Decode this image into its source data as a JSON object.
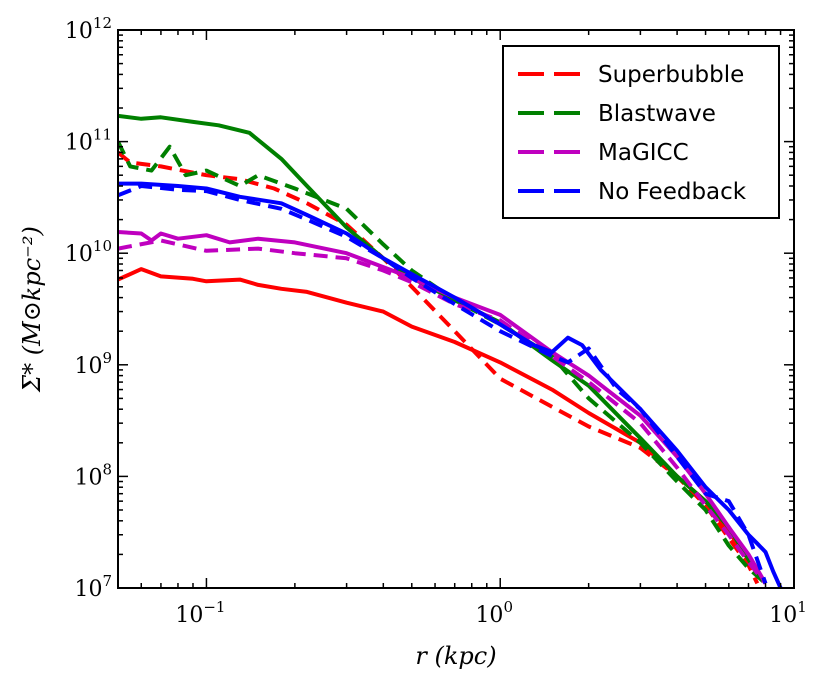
{
  "chart_data": {
    "type": "line",
    "x_scale": "log",
    "y_scale": "log",
    "xlim": [
      0.05,
      10
    ],
    "ylim": [
      10000000.0,
      1000000000000.0
    ],
    "grid": false,
    "legend_position": "top-right",
    "xlabel": "r (kpc)",
    "ylabel": "Σ* (M⊙kpc⁻²)",
    "x_ticks": [
      {
        "value": 0.1,
        "base": "10",
        "exp": "−1"
      },
      {
        "value": 1,
        "base": "10",
        "exp": "0"
      },
      {
        "value": 10,
        "base": "10",
        "exp": "1"
      }
    ],
    "y_ticks": [
      {
        "value": 10000000.0,
        "base": "10",
        "exp": "7"
      },
      {
        "value": 100000000.0,
        "base": "10",
        "exp": "8"
      },
      {
        "value": 1000000000.0,
        "base": "10",
        "exp": "9"
      },
      {
        "value": 10000000000.0,
        "base": "10",
        "exp": "10"
      },
      {
        "value": 100000000000.0,
        "base": "10",
        "exp": "11"
      },
      {
        "value": 1000000000000.0,
        "base": "10",
        "exp": "12"
      }
    ],
    "legend": [
      {
        "name": "Superbubble",
        "color": "#ff0000"
      },
      {
        "name": "Blastwave",
        "color": "#008000"
      },
      {
        "name": "MaGICC",
        "color": "#bf00bf"
      },
      {
        "name": "No Feedback",
        "color": "#0000ff"
      }
    ],
    "series": [
      {
        "legend": "Superbubble",
        "style": "solid",
        "color": "#ff0000",
        "points": [
          [
            0.05,
            5800000000.0
          ],
          [
            0.06,
            7200000000.0
          ],
          [
            0.07,
            6200000000.0
          ],
          [
            0.09,
            5900000000.0
          ],
          [
            0.1,
            5600000000.0
          ],
          [
            0.13,
            5800000000.0
          ],
          [
            0.15,
            5200000000.0
          ],
          [
            0.18,
            4800000000.0
          ],
          [
            0.22,
            4500000000.0
          ],
          [
            0.3,
            3600000000.0
          ],
          [
            0.4,
            3000000000.0
          ],
          [
            0.5,
            2200000000.0
          ],
          [
            0.7,
            1600000000.0
          ],
          [
            1,
            1050000000.0
          ],
          [
            1.5,
            600000000.0
          ],
          [
            2,
            370000000.0
          ],
          [
            3,
            200000000.0
          ],
          [
            4,
            100000000.0
          ],
          [
            5,
            60000000.0
          ],
          [
            6,
            32000000.0
          ],
          [
            7,
            18000000.0
          ],
          [
            8,
            11000000.0
          ]
        ]
      },
      {
        "legend": "Superbubble",
        "style": "dashed",
        "color": "#ff0000",
        "points": [
          [
            0.05,
            80000000000.0
          ],
          [
            0.055,
            65000000000.0
          ],
          [
            0.07,
            60000000000.0
          ],
          [
            0.1,
            50000000000.0
          ],
          [
            0.13,
            46000000000.0
          ],
          [
            0.17,
            38000000000.0
          ],
          [
            0.22,
            28000000000.0
          ],
          [
            0.3,
            18000000000.0
          ],
          [
            0.4,
            9000000000.0
          ],
          [
            0.5,
            5000000000.0
          ],
          [
            0.7,
            2000000000.0
          ],
          [
            1,
            750000000.0
          ],
          [
            1.5,
            420000000.0
          ],
          [
            2,
            280000000.0
          ],
          [
            3,
            180000000.0
          ],
          [
            4,
            100000000.0
          ],
          [
            5,
            55000000.0
          ],
          [
            6,
            28000000.0
          ],
          [
            7,
            16000000.0
          ],
          [
            7.5,
            11000000.0
          ]
        ]
      },
      {
        "legend": "Blastwave",
        "style": "solid",
        "color": "#008000",
        "points": [
          [
            0.05,
            170000000000.0
          ],
          [
            0.06,
            160000000000.0
          ],
          [
            0.07,
            165000000000.0
          ],
          [
            0.09,
            150000000000.0
          ],
          [
            0.11,
            140000000000.0
          ],
          [
            0.14,
            120000000000.0
          ],
          [
            0.18,
            70000000000.0
          ],
          [
            0.22,
            40000000000.0
          ],
          [
            0.3,
            17000000000.0
          ],
          [
            0.4,
            9000000000.0
          ],
          [
            0.5,
            6000000000.0
          ],
          [
            0.7,
            3800000000.0
          ],
          [
            1,
            2400000000.0
          ],
          [
            1.5,
            1100000000.0
          ],
          [
            2,
            650000000.0
          ],
          [
            3,
            220000000.0
          ],
          [
            4,
            100000000.0
          ],
          [
            5,
            60000000.0
          ],
          [
            6,
            35000000.0
          ],
          [
            7,
            18000000.0
          ],
          [
            8,
            11000000.0
          ]
        ]
      },
      {
        "legend": "Blastwave",
        "style": "dashed",
        "color": "#008000",
        "points": [
          [
            0.05,
            100000000000.0
          ],
          [
            0.055,
            60000000000.0
          ],
          [
            0.065,
            55000000000.0
          ],
          [
            0.075,
            90000000000.0
          ],
          [
            0.085,
            50000000000.0
          ],
          [
            0.1,
            55000000000.0
          ],
          [
            0.13,
            40000000000.0
          ],
          [
            0.15,
            50000000000.0
          ],
          [
            0.2,
            38000000000.0
          ],
          [
            0.3,
            25000000000.0
          ],
          [
            0.4,
            12000000000.0
          ],
          [
            0.5,
            7000000000.0
          ],
          [
            0.7,
            3800000000.0
          ],
          [
            1,
            2300000000.0
          ],
          [
            1.5,
            1200000000.0
          ],
          [
            2,
            500000000.0
          ],
          [
            3,
            200000000.0
          ],
          [
            4,
            90000000.0
          ],
          [
            5,
            50000000.0
          ],
          [
            6,
            24000000.0
          ],
          [
            7,
            15000000.0
          ],
          [
            8,
            11000000.0
          ]
        ]
      },
      {
        "legend": "MaGICC",
        "style": "solid",
        "color": "#bf00bf",
        "points": [
          [
            0.05,
            15500000000.0
          ],
          [
            0.06,
            15000000000.0
          ],
          [
            0.065,
            13000000000.0
          ],
          [
            0.07,
            15000000000.0
          ],
          [
            0.08,
            13500000000.0
          ],
          [
            0.1,
            14500000000.0
          ],
          [
            0.12,
            12500000000.0
          ],
          [
            0.15,
            13500000000.0
          ],
          [
            0.2,
            12500000000.0
          ],
          [
            0.3,
            10000000000.0
          ],
          [
            0.4,
            7500000000.0
          ],
          [
            0.5,
            6000000000.0
          ],
          [
            0.7,
            4000000000.0
          ],
          [
            1,
            2800000000.0
          ],
          [
            1.5,
            1300000000.0
          ],
          [
            2,
            800000000.0
          ],
          [
            3,
            350000000.0
          ],
          [
            4,
            150000000.0
          ],
          [
            5,
            70000000.0
          ],
          [
            6,
            35000000.0
          ],
          [
            7,
            20000000.0
          ],
          [
            8,
            11000000.0
          ]
        ]
      },
      {
        "legend": "MaGICC",
        "style": "dashed",
        "color": "#bf00bf",
        "points": [
          [
            0.05,
            11000000000.0
          ],
          [
            0.07,
            13000000000.0
          ],
          [
            0.1,
            10500000000.0
          ],
          [
            0.15,
            11000000000.0
          ],
          [
            0.2,
            10000000000.0
          ],
          [
            0.3,
            9000000000.0
          ],
          [
            0.4,
            7000000000.0
          ],
          [
            0.5,
            5500000000.0
          ],
          [
            0.7,
            3500000000.0
          ],
          [
            1,
            2500000000.0
          ],
          [
            1.5,
            1200000000.0
          ],
          [
            2,
            700000000.0
          ],
          [
            3,
            300000000.0
          ],
          [
            4,
            120000000.0
          ],
          [
            5,
            55000000.0
          ],
          [
            6,
            30000000.0
          ],
          [
            7,
            17000000.0
          ],
          [
            8,
            11000000.0
          ]
        ]
      },
      {
        "legend": "No Feedback",
        "style": "solid",
        "color": "#0000ff",
        "points": [
          [
            0.05,
            42000000000.0
          ],
          [
            0.06,
            42000000000.0
          ],
          [
            0.08,
            40000000000.0
          ],
          [
            0.1,
            38000000000.0
          ],
          [
            0.13,
            32000000000.0
          ],
          [
            0.18,
            28000000000.0
          ],
          [
            0.22,
            22000000000.0
          ],
          [
            0.3,
            15000000000.0
          ],
          [
            0.4,
            9000000000.0
          ],
          [
            0.5,
            6500000000.0
          ],
          [
            0.7,
            4000000000.0
          ],
          [
            1,
            2300000000.0
          ],
          [
            1.3,
            1500000000.0
          ],
          [
            1.5,
            1300000000.0
          ],
          [
            1.7,
            1750000000.0
          ],
          [
            1.9,
            1500000000.0
          ],
          [
            2.2,
            900000000.0
          ],
          [
            3,
            400000000.0
          ],
          [
            4,
            170000000.0
          ],
          [
            5,
            80000000.0
          ],
          [
            6,
            50000000.0
          ],
          [
            7,
            30000000.0
          ],
          [
            7.5,
            25000000.0
          ],
          [
            8,
            21000000.0
          ],
          [
            8.5,
            14000000.0
          ],
          [
            9,
            10000000.0
          ]
        ]
      },
      {
        "legend": "No Feedback",
        "style": "dashed",
        "color": "#0000ff",
        "points": [
          [
            0.05,
            33000000000.0
          ],
          [
            0.06,
            40000000000.0
          ],
          [
            0.08,
            37000000000.0
          ],
          [
            0.1,
            36000000000.0
          ],
          [
            0.13,
            30000000000.0
          ],
          [
            0.18,
            25000000000.0
          ],
          [
            0.22,
            20000000000.0
          ],
          [
            0.3,
            14000000000.0
          ],
          [
            0.4,
            9000000000.0
          ],
          [
            0.5,
            6000000000.0
          ],
          [
            0.7,
            3500000000.0
          ],
          [
            1,
            2000000000.0
          ],
          [
            1.5,
            1200000000.0
          ],
          [
            1.7,
            1050000000.0
          ],
          [
            2,
            1400000000.0
          ],
          [
            2.5,
            600000000.0
          ],
          [
            3,
            400000000.0
          ],
          [
            4,
            150000000.0
          ],
          [
            5,
            70000000.0
          ],
          [
            6,
            60000000.0
          ],
          [
            7,
            30000000.0
          ],
          [
            8,
            11000000.0
          ]
        ]
      }
    ]
  }
}
